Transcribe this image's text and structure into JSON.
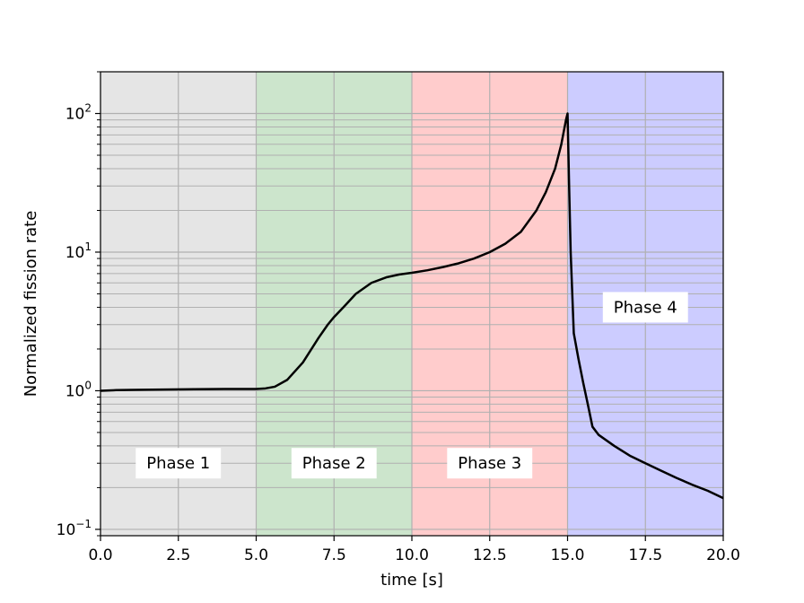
{
  "chart_data": {
    "type": "line",
    "title": "",
    "xlabel": "time [s]",
    "ylabel": "Normalized fission rate",
    "xlim": [
      0,
      20
    ],
    "ylim": [
      0.09,
      200
    ],
    "yscale": "log",
    "grid": "major and minor",
    "x_ticks": [
      0,
      2.5,
      5,
      7.5,
      10,
      12.5,
      15,
      17.5,
      20
    ],
    "x_tick_labels": [
      "0.0",
      "2.5",
      "5.0",
      "7.5",
      "10.0",
      "12.5",
      "15.0",
      "17.5",
      "20.0"
    ],
    "y_ticks": [
      0.1,
      1,
      10,
      100
    ],
    "y_tick_labels": [
      {
        "base": "10",
        "exp": "−1"
      },
      {
        "base": "10",
        "exp": "0"
      },
      {
        "base": "10",
        "exp": "1"
      },
      {
        "base": "10",
        "exp": "2"
      }
    ],
    "phases": [
      {
        "label": "Phase 1",
        "x_start": 0,
        "x_end": 5,
        "color": "#e5e5e5",
        "label_x": 2.5,
        "label_y": 0.3
      },
      {
        "label": "Phase 2",
        "x_start": 5,
        "x_end": 10,
        "color": "#cce5cc",
        "label_x": 7.5,
        "label_y": 0.3
      },
      {
        "label": "Phase 3",
        "x_start": 10,
        "x_end": 15,
        "color": "#ffcccc",
        "label_x": 12.5,
        "label_y": 0.3
      },
      {
        "label": "Phase 4",
        "x_start": 15,
        "x_end": 20,
        "color": "#ccccff",
        "label_x": 17.5,
        "label_y": 4.0
      }
    ],
    "series": [
      {
        "color": "#000000",
        "x": [
          0,
          0.5,
          1,
          2,
          3,
          4,
          5,
          5.3,
          5.6,
          6,
          6.5,
          7,
          7.3,
          7.5,
          7.8,
          8.2,
          8.7,
          9.2,
          9.6,
          10,
          10.5,
          11,
          11.5,
          12,
          12.5,
          13,
          13.5,
          14,
          14.3,
          14.6,
          14.8,
          14.95,
          15.0,
          15.05,
          15.1,
          15.2,
          15.35,
          15.5,
          15.65,
          15.8,
          16,
          16.5,
          17,
          17.5,
          18,
          18.5,
          19,
          19.5,
          20
        ],
        "y": [
          1.0,
          1.01,
          1.015,
          1.02,
          1.025,
          1.03,
          1.03,
          1.04,
          1.07,
          1.2,
          1.6,
          2.4,
          3.0,
          3.4,
          4.0,
          5.0,
          6.0,
          6.6,
          6.9,
          7.1,
          7.4,
          7.8,
          8.3,
          9.0,
          10.0,
          11.5,
          14.0,
          20.0,
          27.0,
          40.0,
          60.0,
          90.0,
          100.0,
          30.0,
          10.0,
          2.6,
          1.7,
          1.15,
          0.8,
          0.55,
          0.48,
          0.4,
          0.34,
          0.3,
          0.265,
          0.235,
          0.21,
          0.19,
          0.168
        ]
      }
    ]
  }
}
